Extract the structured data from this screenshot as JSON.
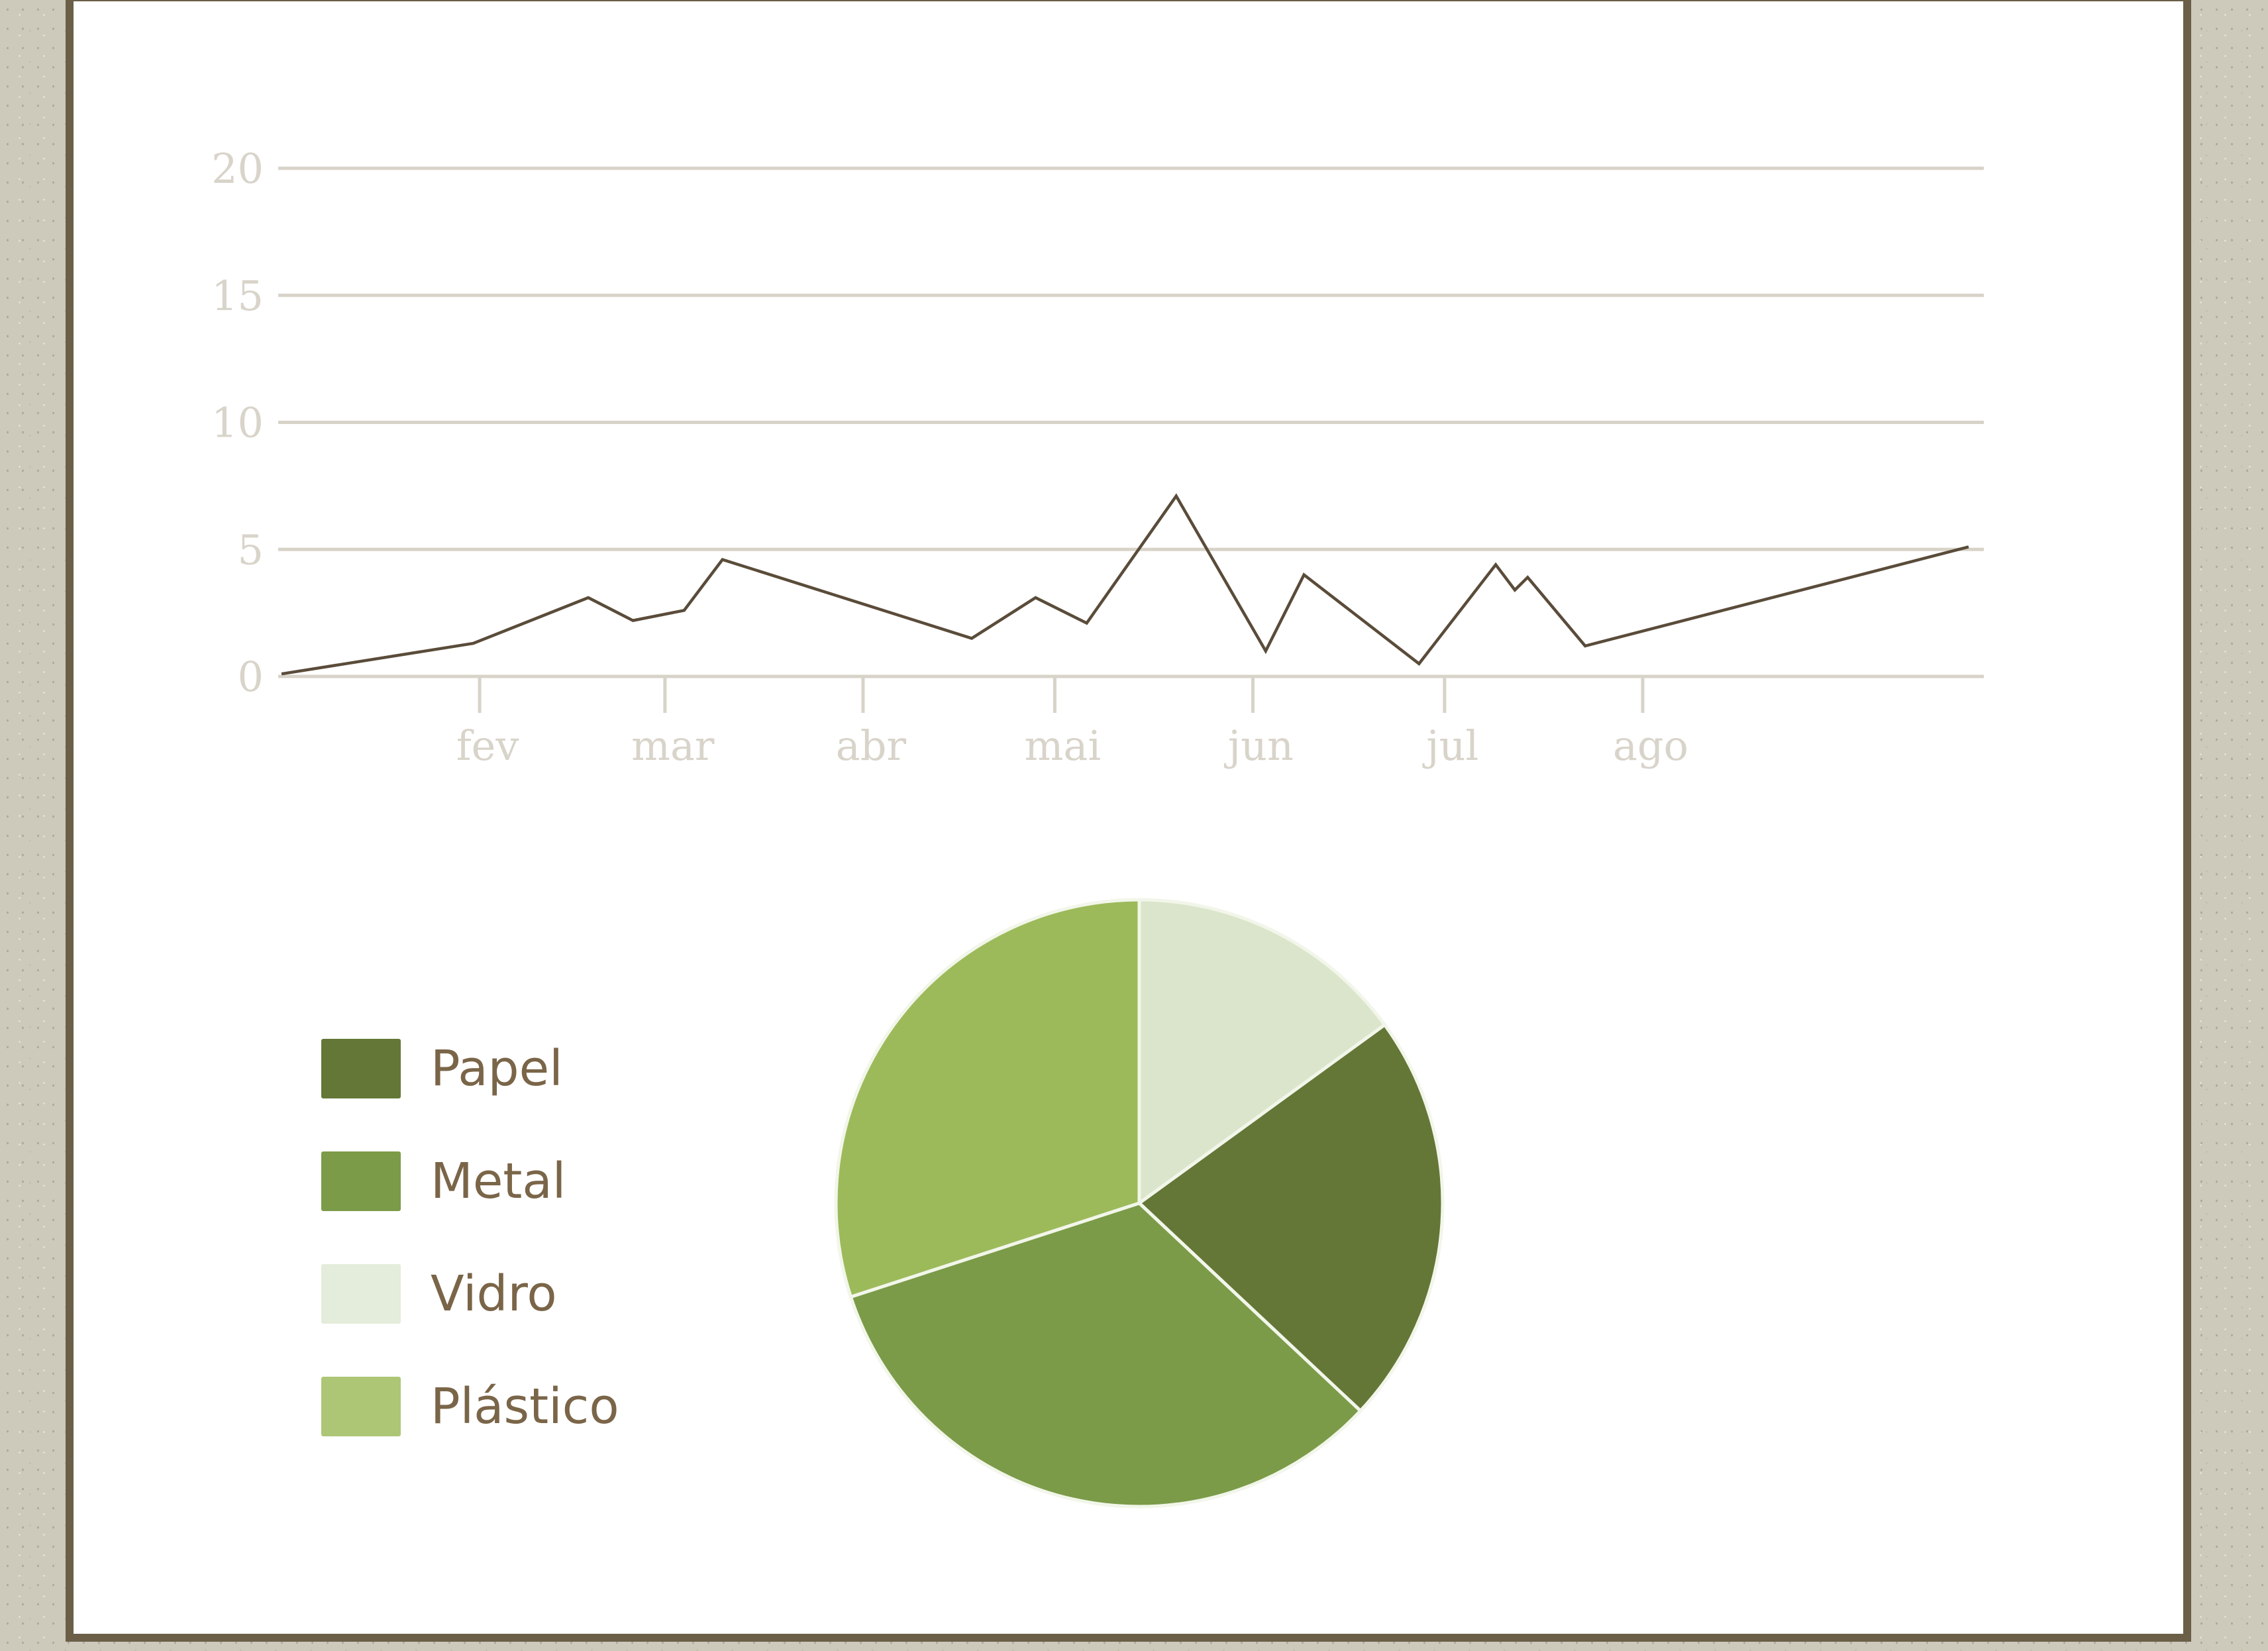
{
  "chart_data": [
    {
      "type": "line",
      "title": "",
      "xlabel": "",
      "ylabel": "",
      "ylim": [
        0,
        20
      ],
      "yticks": [
        "0",
        "5",
        "10",
        "15",
        "20"
      ],
      "xticks": [
        "fev",
        "mar",
        "abr",
        "mai",
        "jun",
        "jul",
        "ago"
      ],
      "grid": true,
      "series": [
        {
          "values": [
            {
              "x": "2020-01-01",
              "y": 0.1
            },
            {
              "x": "2020-01-31",
              "y": 1.3
            },
            {
              "x": "2020-02-18",
              "y": 3.1
            },
            {
              "x": "2020-02-25",
              "y": 2.2
            },
            {
              "x": "2020-03-04",
              "y": 2.6
            },
            {
              "x": "2020-03-10",
              "y": 4.6
            },
            {
              "x": "2020-04-18",
              "y": 1.5
            },
            {
              "x": "2020-04-28",
              "y": 3.1
            },
            {
              "x": "2020-05-06",
              "y": 2.1
            },
            {
              "x": "2020-05-20",
              "y": 7.1
            },
            {
              "x": "2020-06-03",
              "y": 1.0
            },
            {
              "x": "2020-06-09",
              "y": 4.0
            },
            {
              "x": "2020-06-27",
              "y": 0.5
            },
            {
              "x": "2020-07-09",
              "y": 4.4
            },
            {
              "x": "2020-07-12",
              "y": 3.4
            },
            {
              "x": "2020-07-14",
              "y": 3.9
            },
            {
              "x": "2020-07-23",
              "y": 1.2
            },
            {
              "x": "2020-09-21",
              "y": 5.1
            }
          ]
        }
      ],
      "colors": {
        "line": "#5a4c3a",
        "grid": "#d8d3c8",
        "ticks": "#d9d4ca"
      }
    },
    {
      "type": "pie",
      "title": "",
      "legend_position": "left",
      "slices": [
        {
          "name": "Vidro",
          "value": 15,
          "color": "#dbe5cb"
        },
        {
          "name": "Papel",
          "value": 22,
          "color": "#647737"
        },
        {
          "name": "Metal",
          "value": 33,
          "color": "#7b9b48"
        },
        {
          "name": "Plástico",
          "value": 30,
          "color": "#9cba5a"
        }
      ]
    }
  ],
  "legend": {
    "items": [
      {
        "label": "Papel",
        "color": "#647737"
      },
      {
        "label": "Metal",
        "color": "#7b9b48"
      },
      {
        "label": "Vidro",
        "color": "#e4eddb"
      },
      {
        "label": "Plástico",
        "color": "#adc676"
      }
    ]
  }
}
